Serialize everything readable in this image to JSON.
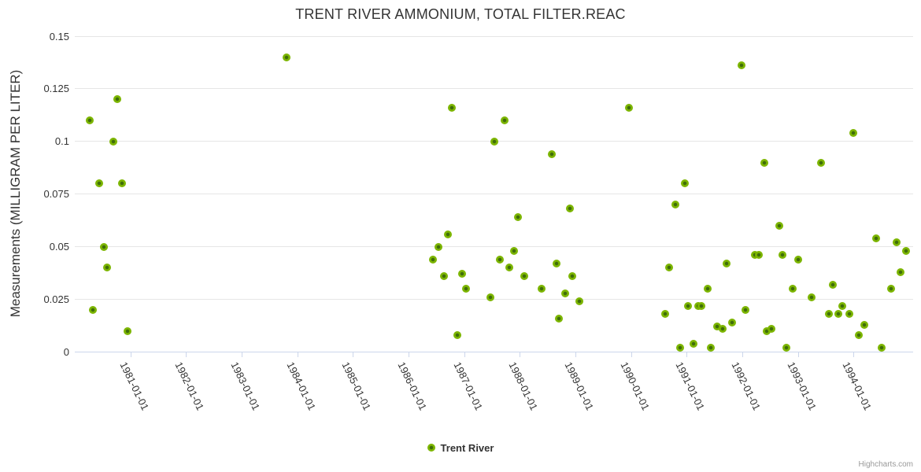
{
  "chart": {
    "credits_label": "Highcharts.com"
  },
  "legend": {
    "items": [
      {
        "label": "Trent River"
      }
    ]
  },
  "chart_data": {
    "type": "scatter",
    "title": "TRENT RIVER AMMONIUM, TOTAL FILTER.REAC",
    "xlabel": "",
    "ylabel": "Measurements (MILLIGRAM PER LITER)",
    "ylim": [
      0,
      0.15
    ],
    "xlim_decimal_years": [
      1980.0,
      1995.07
    ],
    "grid": true,
    "legend_position": "bottom-center",
    "yticks": [
      0,
      0.025,
      0.05,
      0.075,
      0.1,
      0.125,
      0.15
    ],
    "ytick_labels": [
      "0",
      "0.025",
      "0.05",
      "0.075",
      "0.1",
      "0.125",
      "0.15"
    ],
    "xtick_years": [
      1981,
      1982,
      1983,
      1984,
      1985,
      1986,
      1987,
      1988,
      1989,
      1990,
      1991,
      1992,
      1993,
      1994
    ],
    "xtick_labels": [
      "1981-01-01",
      "1982-01-01",
      "1983-01-01",
      "1984-01-01",
      "1985-01-01",
      "1986-01-01",
      "1987-01-01",
      "1988-01-01",
      "1989-01-01",
      "1990-01-01",
      "1991-01-01",
      "1992-01-01",
      "1993-01-01",
      "1994-01-01"
    ],
    "colors": {
      "marker_outer": "#7cb500",
      "marker_inner": "#3f6d0a",
      "gridline": "#e6e6e6",
      "axis_line": "#ccd6eb",
      "text": "#333333",
      "credits_text": "#999999"
    },
    "series": [
      {
        "name": "Trent River",
        "points": [
          [
            1980.27,
            0.11
          ],
          [
            1980.33,
            0.02
          ],
          [
            1980.44,
            0.08
          ],
          [
            1980.52,
            0.05
          ],
          [
            1980.58,
            0.04
          ],
          [
            1980.69,
            0.1
          ],
          [
            1980.76,
            0.12
          ],
          [
            1980.85,
            0.08
          ],
          [
            1980.95,
            0.01
          ],
          [
            1983.8,
            0.14
          ],
          [
            1986.44,
            0.044
          ],
          [
            1986.54,
            0.05
          ],
          [
            1986.63,
            0.036
          ],
          [
            1986.71,
            0.056
          ],
          [
            1986.78,
            0.116
          ],
          [
            1986.87,
            0.008
          ],
          [
            1986.96,
            0.037
          ],
          [
            1987.03,
            0.03
          ],
          [
            1987.47,
            0.026
          ],
          [
            1987.54,
            0.1
          ],
          [
            1987.64,
            0.044
          ],
          [
            1987.72,
            0.11
          ],
          [
            1987.81,
            0.04
          ],
          [
            1987.9,
            0.048
          ],
          [
            1987.97,
            0.064
          ],
          [
            1988.08,
            0.036
          ],
          [
            1988.39,
            0.03
          ],
          [
            1988.57,
            0.094
          ],
          [
            1988.66,
            0.042
          ],
          [
            1988.7,
            0.016
          ],
          [
            1988.81,
            0.028
          ],
          [
            1988.9,
            0.068
          ],
          [
            1988.95,
            0.036
          ],
          [
            1989.07,
            0.024
          ],
          [
            1989.96,
            0.116
          ],
          [
            1990.61,
            0.018
          ],
          [
            1990.69,
            0.04
          ],
          [
            1990.79,
            0.07
          ],
          [
            1990.88,
            0.002
          ],
          [
            1990.96,
            0.08
          ],
          [
            1991.03,
            0.022
          ],
          [
            1991.12,
            0.004
          ],
          [
            1991.2,
            0.022
          ],
          [
            1991.27,
            0.022
          ],
          [
            1991.37,
            0.03
          ],
          [
            1991.44,
            0.002
          ],
          [
            1991.55,
            0.012
          ],
          [
            1991.64,
            0.011
          ],
          [
            1991.71,
            0.042
          ],
          [
            1991.81,
            0.014
          ],
          [
            1991.99,
            0.136
          ],
          [
            1992.06,
            0.02
          ],
          [
            1992.22,
            0.046
          ],
          [
            1992.29,
            0.046
          ],
          [
            1992.39,
            0.09
          ],
          [
            1992.44,
            0.01
          ],
          [
            1992.53,
            0.011
          ],
          [
            1992.67,
            0.06
          ],
          [
            1992.72,
            0.046
          ],
          [
            1992.79,
            0.002
          ],
          [
            1992.91,
            0.03
          ],
          [
            1993.0,
            0.044
          ],
          [
            1993.24,
            0.026
          ],
          [
            1993.42,
            0.09
          ],
          [
            1993.56,
            0.018
          ],
          [
            1993.63,
            0.032
          ],
          [
            1993.73,
            0.018
          ],
          [
            1993.8,
            0.022
          ],
          [
            1993.92,
            0.018
          ],
          [
            1993.99,
            0.104
          ],
          [
            1994.09,
            0.008
          ],
          [
            1994.19,
            0.013
          ],
          [
            1994.41,
            0.054
          ],
          [
            1994.5,
            0.002
          ],
          [
            1994.67,
            0.03
          ],
          [
            1994.77,
            0.052
          ],
          [
            1994.84,
            0.038
          ],
          [
            1994.94,
            0.048
          ]
        ]
      }
    ]
  }
}
